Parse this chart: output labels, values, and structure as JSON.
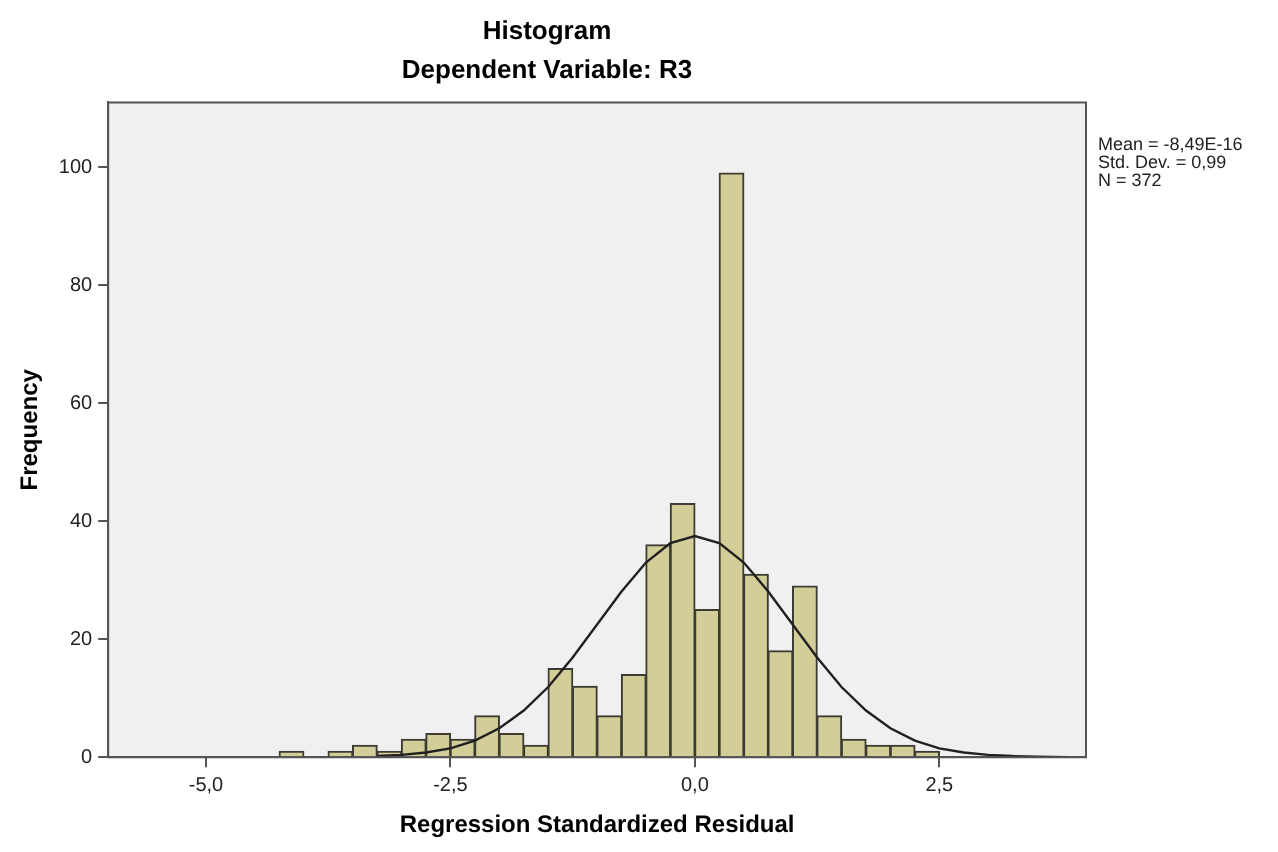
{
  "chart_data": {
    "type": "histogram",
    "title": "Histogram",
    "subtitle": "Dependent Variable: R3",
    "xlabel": "Regression Standardized Residual",
    "ylabel": "Frequency",
    "bins": [
      -4.25,
      -4,
      -3.75,
      -3.5,
      -3.25,
      -3,
      -2.75,
      -2.5,
      -2.25,
      -2,
      -1.75,
      -1.5,
      -1.25,
      -1,
      -0.75,
      -0.5,
      -0.25,
      0,
      0.25,
      0.5,
      0.75,
      1,
      1.25,
      1.5,
      1.75,
      2,
      2.25,
      2.5
    ],
    "values": [
      1,
      0,
      1,
      2,
      1,
      3,
      4,
      3,
      7,
      4,
      2,
      15,
      12,
      7,
      14,
      36,
      43,
      25,
      99,
      31,
      18,
      29,
      7,
      3,
      2,
      2,
      1
    ],
    "color": "#d3cd98",
    "series": [
      {
        "type": "line",
        "color": "#202020",
        "x": [
          -3.25,
          -3,
          -2.75,
          -2.5,
          -2.25,
          -2,
          -1.75,
          -1.5,
          -1.25,
          -1,
          -0.75,
          -0.5,
          -0.25,
          0,
          0.25,
          0.5,
          0.75,
          1,
          1.25,
          1.5,
          1.75,
          2,
          2.25,
          2.5,
          2.75,
          3,
          3.25,
          3.5,
          3.8
        ],
        "values": [
          0.2,
          0.4,
          0.8,
          1.5,
          2.8,
          4.9,
          7.9,
          11.9,
          16.9,
          22.5,
          28.1,
          33,
          36.3,
          37.5,
          36.3,
          33,
          28.1,
          22.5,
          16.9,
          11.9,
          7.9,
          4.9,
          2.8,
          1.5,
          0.8,
          0.4,
          0.2,
          0.1,
          0
        ]
      }
    ],
    "xlim": [
      -6,
      4
    ],
    "xticks": [
      {
        "value": -5,
        "label": "-5,0"
      },
      {
        "value": -2.5,
        "label": "-2,5"
      },
      {
        "value": 0,
        "label": "0,0"
      },
      {
        "value": 2.5,
        "label": "2,5"
      }
    ],
    "ylim": [
      0,
      111
    ],
    "yticks": [
      0,
      20,
      40,
      60,
      80,
      100
    ],
    "grid": false,
    "legend": false,
    "annotations": [
      "Mean = -8,49E-16",
      "Std. Dev. = 0,99",
      "N = 372"
    ]
  }
}
